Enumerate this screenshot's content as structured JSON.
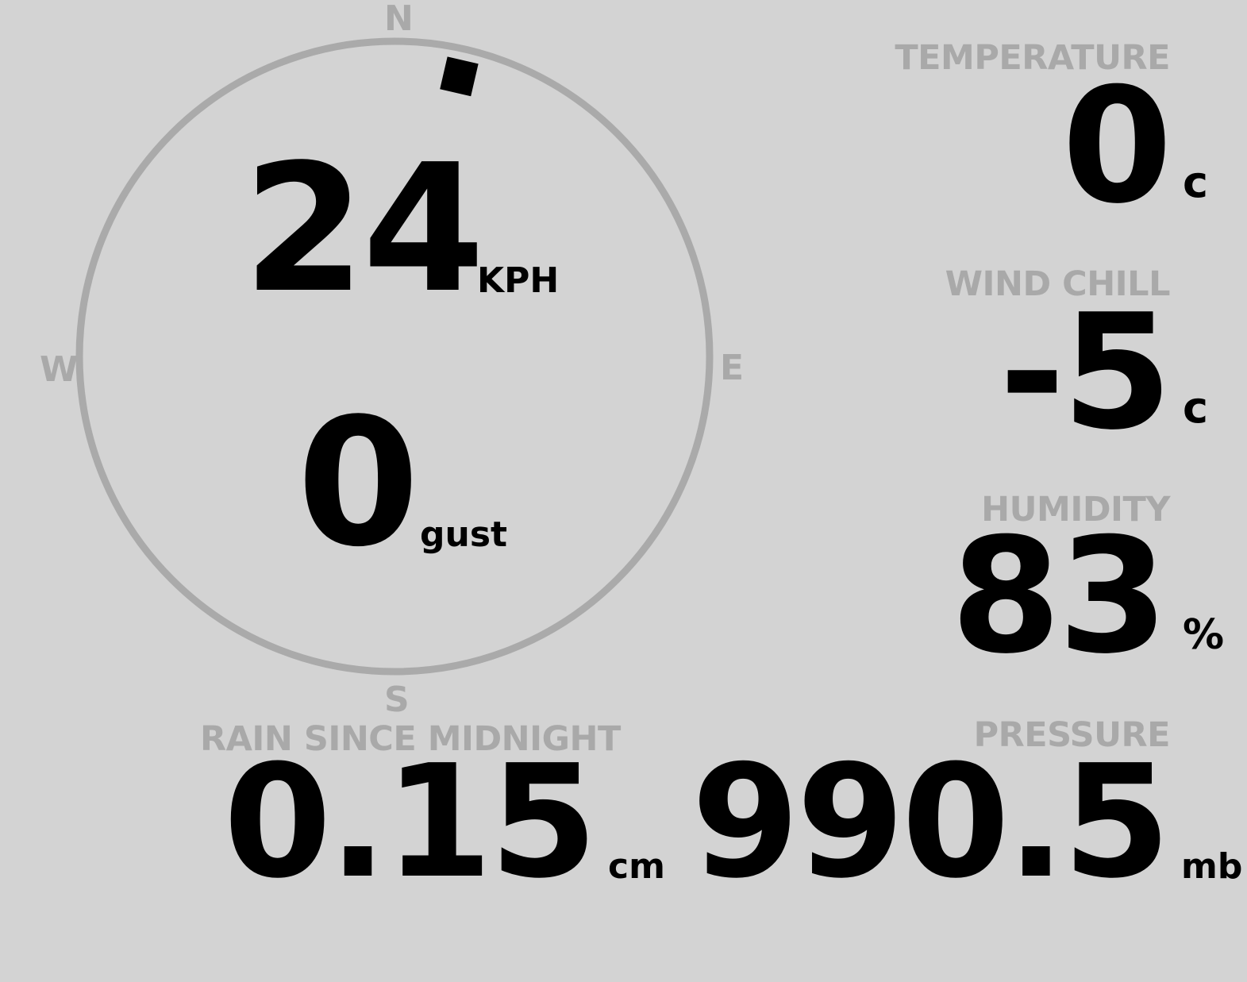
{
  "compass": {
    "north": "N",
    "east": "E",
    "south": "S",
    "west": "W",
    "wind_direction_deg": 13,
    "ring_color": "#aaaaaa",
    "pointer_color": "#000000"
  },
  "wind": {
    "speed": "24",
    "speed_unit": "KPH",
    "gust": "0",
    "gust_unit": "gust"
  },
  "temperature": {
    "label": "TEMPERATURE",
    "value": "0",
    "unit": "c"
  },
  "wind_chill": {
    "label": "WIND CHILL",
    "value": "-5",
    "unit": "c"
  },
  "humidity": {
    "label": "HUMIDITY",
    "value": "83",
    "unit": "%"
  },
  "rain": {
    "label": "RAIN SINCE MIDNIGHT",
    "value": "0.15",
    "unit": "cm"
  },
  "pressure": {
    "label": "PRESSURE",
    "value": "990.5",
    "unit": "mb"
  },
  "colors": {
    "background": "#d3d3d3",
    "label": "#a9a9a9",
    "value": "#000000"
  }
}
